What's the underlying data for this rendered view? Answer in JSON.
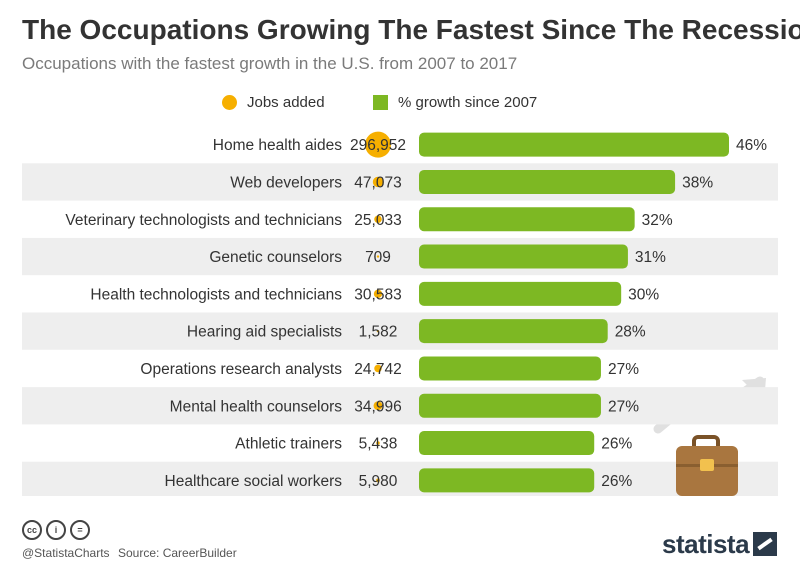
{
  "title": "The Occupations Growing The Fastest Since The Recession",
  "subtitle": "Occupations with the fastest  growth in the U.S. from 2007 to 2017",
  "legend": {
    "jobs_label": "Jobs added",
    "growth_label": "% growth since 2007"
  },
  "colors": {
    "bubble": "#F6AF00",
    "bar": "#7DB823",
    "row_band": "#EEEEEE",
    "text": "#333333",
    "briefcase": "#A9763F",
    "arrow": "#E0E0E0"
  },
  "icons": [
    "creative-commons-icon",
    "attribution-icon",
    "no-derivatives-icon",
    "rising-arrow-icon",
    "briefcase-icon",
    "statista-logo-icon"
  ],
  "chart_data": {
    "type": "bar",
    "categories": [
      "Home health aides",
      "Web developers",
      "Veterinary technologists and technicians",
      "Genetic counselors",
      "Health technologists and technicians",
      "Hearing aid specialists",
      "Operations research analysts",
      "Mental health counselors",
      "Athletic trainers",
      "Healthcare social workers"
    ],
    "series": [
      {
        "name": "Jobs added",
        "values": [
          296952,
          47073,
          25033,
          709,
          30583,
          1582,
          24742,
          34996,
          5438,
          5980
        ],
        "labels": [
          "296,952",
          "47,073",
          "25,033",
          "709",
          "30,583",
          "1,582",
          "24,742",
          "34,996",
          "5,438",
          "5,980"
        ]
      },
      {
        "name": "% growth since 2007",
        "values": [
          46,
          38,
          32,
          31,
          30,
          28,
          27,
          27,
          26,
          26
        ],
        "labels": [
          "46%",
          "38%",
          "32%",
          "31%",
          "30%",
          "28%",
          "27%",
          "27%",
          "26%",
          "26%"
        ]
      }
    ]
  },
  "footer": {
    "cc_labels": [
      "cc",
      "i",
      "="
    ],
    "handle": "@StatistaCharts",
    "source": "Source: CareerBuilder",
    "brand": "statista"
  }
}
